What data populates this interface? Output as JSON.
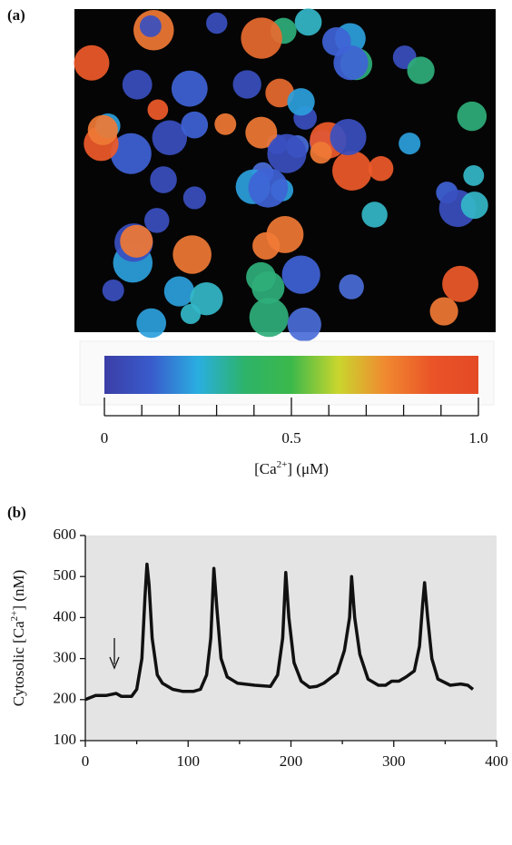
{
  "panels": [
    "(a)",
    "(b)"
  ],
  "chart_data": [
    {
      "type": "colorbar",
      "colors": [
        "#3b3ea6",
        "#3a5bcc",
        "#2aaee0",
        "#2db36a",
        "#3cb84a",
        "#c9d62e",
        "#f08a30",
        "#ea5428",
        "#e44a26"
      ],
      "xlim": [
        0,
        1.0
      ],
      "xticks": [
        0,
        0.5,
        {
          "value": 1.0,
          "label": "1.0"
        }
      ],
      "minor_xticks": [
        0.1,
        0.2,
        0.3,
        0.4,
        0.6,
        0.7,
        0.8,
        0.9
      ],
      "xlabel": [
        "[Ca",
        "2+",
        "] (μM)"
      ]
    },
    {
      "type": "line",
      "x": [
        0,
        10,
        20,
        30,
        35,
        45,
        50,
        55,
        58,
        60,
        62,
        65,
        70,
        75,
        85,
        95,
        105,
        112,
        118,
        122,
        125,
        128,
        132,
        138,
        148,
        165,
        180,
        187,
        192,
        195,
        198,
        203,
        210,
        218,
        225,
        232,
        245,
        252,
        257,
        259,
        262,
        267,
        275,
        285,
        292,
        298,
        305,
        312,
        320,
        325,
        328,
        330,
        333,
        337,
        343,
        355,
        365,
        372,
        377
      ],
      "values": [
        200,
        210,
        210,
        215,
        208,
        208,
        225,
        300,
        450,
        530,
        480,
        350,
        260,
        240,
        225,
        220,
        220,
        225,
        260,
        350,
        520,
        420,
        300,
        255,
        240,
        235,
        232,
        260,
        350,
        510,
        400,
        290,
        245,
        230,
        232,
        240,
        265,
        320,
        400,
        500,
        400,
        310,
        250,
        235,
        235,
        245,
        245,
        255,
        270,
        330,
        430,
        485,
        400,
        300,
        250,
        235,
        238,
        235,
        225
      ],
      "color": "#111111",
      "background": "#e4e4e4",
      "xlim": [
        0,
        400
      ],
      "xticks": [
        0,
        100,
        200,
        300,
        400
      ],
      "minor_xticks": [
        50,
        150,
        250,
        350
      ],
      "ylim": [
        100,
        600
      ],
      "yticks": [
        100,
        200,
        300,
        400,
        500,
        600
      ],
      "ylabel": [
        "Cytosolic [Ca",
        "2+",
        "] (nM)"
      ]
    }
  ]
}
